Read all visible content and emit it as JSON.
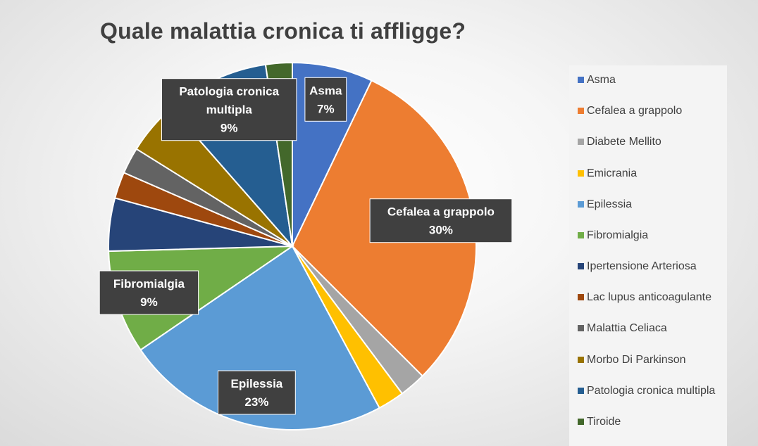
{
  "chart_data": {
    "type": "pie",
    "title": "Quale malattia cronica ti affligge?",
    "categories": [
      "Asma",
      "Cefalea a grappolo",
      "Diabete Mellito",
      "Emicrania",
      "Epilessia",
      "Fibromialgia",
      "Ipertensione Arteriosa",
      "Lac lupus anticoagulante",
      "Malattia Celiaca",
      "Morbo Di Parkinson",
      "Patologia cronica multipla",
      "Tiroide"
    ],
    "values": [
      7,
      30,
      2.3,
      2.3,
      23,
      9,
      4.6,
      2.3,
      2.3,
      4.6,
      9,
      2.3
    ],
    "colors": [
      "#4472C4",
      "#ED7D31",
      "#A5A5A5",
      "#FFC000",
      "#5B9BD5",
      "#70AD47",
      "#264478",
      "#9E480E",
      "#636363",
      "#997300",
      "#255E91",
      "#43682B"
    ],
    "data_labels": [
      {
        "index": 0,
        "lines": [
          "Asma",
          "7%"
        ]
      },
      {
        "index": 1,
        "lines": [
          "Cefalea a grappolo",
          "30%"
        ]
      },
      {
        "index": 4,
        "lines": [
          "Epilessia",
          "23%"
        ]
      },
      {
        "index": 5,
        "lines": [
          "Fibromialgia",
          "9%"
        ]
      },
      {
        "index": 10,
        "lines": [
          "Patologia cronica",
          "multipla",
          "9%"
        ]
      }
    ],
    "legend_position": "right"
  }
}
